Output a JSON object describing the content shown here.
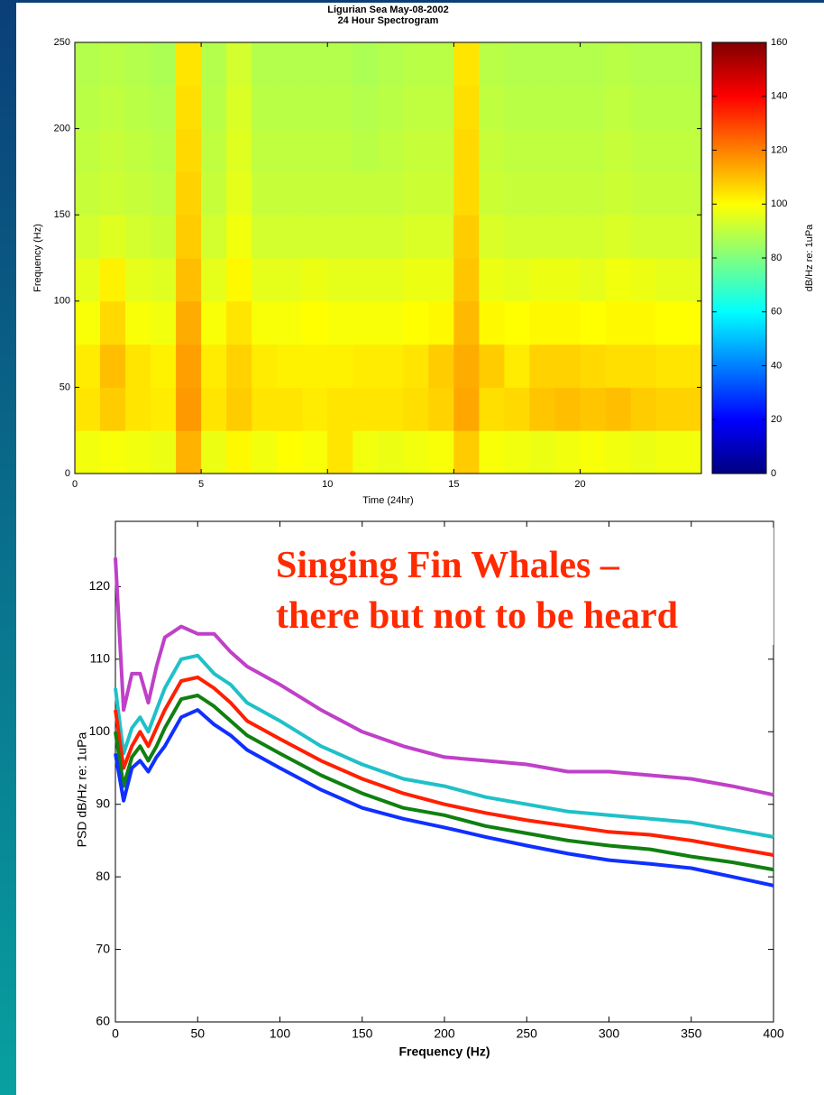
{
  "chart_data": [
    {
      "type": "heatmap",
      "title": "Ligurian Sea May-08-2002",
      "subtitle": "24 Hour Spectrogram",
      "xlabel": "Time (24hr)",
      "ylabel": "Frequency (Hz)",
      "colorbar_label": "dB/Hz re: 1uPa",
      "colormap": "jet",
      "xlim": [
        0,
        24.8
      ],
      "ylim": [
        0,
        250
      ],
      "xticks": [
        0,
        5,
        10,
        15,
        20
      ],
      "yticks": [
        0,
        50,
        100,
        150,
        200,
        250
      ],
      "clim": [
        0,
        160
      ],
      "cticks": [
        0,
        20,
        40,
        60,
        80,
        100,
        120,
        140,
        160
      ],
      "xbins": [
        0,
        1,
        2,
        3,
        4,
        5,
        6,
        7,
        8,
        9,
        10,
        11,
        12,
        13,
        14,
        15,
        16,
        17,
        18,
        19,
        20,
        21,
        22,
        23,
        24.8
      ],
      "ybins": [
        0,
        25,
        50,
        75,
        100,
        125,
        150,
        175,
        200,
        225,
        250
      ],
      "values": [
        [
          98,
          99,
          98,
          97,
          112,
          97,
          101,
          98,
          100,
          99,
          104,
          98,
          97,
          98,
          99,
          108,
          99,
          98,
          97,
          98,
          99,
          98,
          97,
          98
        ],
        [
          104,
          108,
          104,
          103,
          116,
          104,
          108,
          104,
          104,
          103,
          104,
          104,
          104,
          105,
          107,
          114,
          105,
          106,
          109,
          110,
          109,
          110,
          108,
          107
        ],
        [
          103,
          110,
          104,
          102,
          115,
          103,
          107,
          103,
          102,
          102,
          102,
          103,
          103,
          104,
          108,
          113,
          108,
          103,
          107,
          107,
          106,
          105,
          105,
          104
        ],
        [
          99,
          106,
          99,
          98,
          113,
          99,
          104,
          99,
          99,
          100,
          99,
          99,
          99,
          100,
          101,
          111,
          101,
          100,
          101,
          101,
          100,
          101,
          101,
          100
        ],
        [
          96,
          102,
          96,
          95,
          110,
          96,
          101,
          96,
          96,
          97,
          96,
          96,
          96,
          97,
          97,
          109,
          97,
          96,
          97,
          97,
          96,
          98,
          97,
          96
        ],
        [
          93,
          95,
          93,
          92,
          108,
          93,
          98,
          93,
          93,
          93,
          93,
          93,
          93,
          94,
          94,
          108,
          94,
          93,
          93,
          93,
          93,
          94,
          93,
          93
        ],
        [
          91,
          92,
          91,
          90,
          107,
          91,
          96,
          91,
          91,
          91,
          91,
          91,
          91,
          92,
          92,
          106,
          92,
          91,
          91,
          91,
          91,
          92,
          91,
          91
        ],
        [
          90,
          91,
          90,
          89,
          106,
          90,
          95,
          90,
          90,
          90,
          90,
          89,
          90,
          91,
          91,
          106,
          91,
          90,
          90,
          90,
          90,
          91,
          90,
          90
        ],
        [
          89,
          90,
          89,
          88,
          105,
          89,
          94,
          89,
          89,
          89,
          89,
          88,
          89,
          90,
          90,
          105,
          90,
          89,
          89,
          89,
          89,
          90,
          89,
          89
        ],
        [
          88,
          89,
          88,
          87,
          104,
          88,
          93,
          88,
          88,
          88,
          88,
          87,
          88,
          89,
          89,
          104,
          89,
          88,
          88,
          88,
          88,
          89,
          88,
          88
        ]
      ]
    },
    {
      "type": "line",
      "xlabel": "Frequency (Hz)",
      "ylabel": "PSD dB/Hz re: 1uPa",
      "annotation": [
        "Singing Fin Whales –",
        "there but not to be heard"
      ],
      "xlim": [
        0,
        400
      ],
      "ylim": [
        60,
        129
      ],
      "xticks": [
        0,
        50,
        100,
        150,
        200,
        250,
        300,
        350,
        400
      ],
      "yticks": [
        60,
        70,
        80,
        90,
        100,
        110,
        120
      ],
      "x": [
        0,
        5,
        10,
        15,
        20,
        25,
        30,
        40,
        50,
        60,
        70,
        80,
        100,
        125,
        150,
        175,
        200,
        225,
        250,
        275,
        300,
        325,
        350,
        375,
        400
      ],
      "series": [
        {
          "color": "#c040c8",
          "values": [
            124,
            103,
            108,
            108,
            104,
            109,
            113,
            114.5,
            113.5,
            113.5,
            111,
            109,
            106.5,
            103,
            100,
            98,
            96.5,
            96,
            95.5,
            94.5,
            94.5,
            94,
            93.5,
            92.5,
            91.3
          ]
        },
        {
          "color": "#20c0c8",
          "values": [
            106,
            97,
            100.5,
            102,
            100,
            103,
            106,
            110,
            110.5,
            108,
            106.5,
            104,
            101.5,
            98,
            95.5,
            93.5,
            92.5,
            91,
            90,
            89,
            88.5,
            88,
            87.5,
            86.5,
            85.5
          ]
        },
        {
          "color": "#ff2000",
          "values": [
            103,
            95,
            98,
            100,
            98,
            100.5,
            103,
            107,
            107.5,
            106,
            104,
            101.5,
            99,
            96,
            93.5,
            91.5,
            90,
            88.8,
            87.8,
            87,
            86.2,
            85.8,
            85,
            84,
            83
          ]
        },
        {
          "color": "#108010",
          "values": [
            100,
            92.5,
            96.5,
            98,
            96,
            98,
            100.5,
            104.5,
            105,
            103.5,
            101.5,
            99.5,
            97,
            94,
            91.5,
            89.5,
            88.5,
            87,
            86,
            85,
            84.3,
            83.8,
            82.8,
            82,
            81
          ]
        },
        {
          "color": "#1030ff",
          "values": [
            97,
            90.5,
            95,
            96,
            94.5,
            96.5,
            98,
            102,
            103,
            101,
            99.5,
            97.5,
            95,
            92,
            89.5,
            88,
            86.8,
            85.5,
            84.3,
            83.2,
            82.3,
            81.8,
            81.2,
            80,
            78.8
          ]
        }
      ]
    }
  ]
}
